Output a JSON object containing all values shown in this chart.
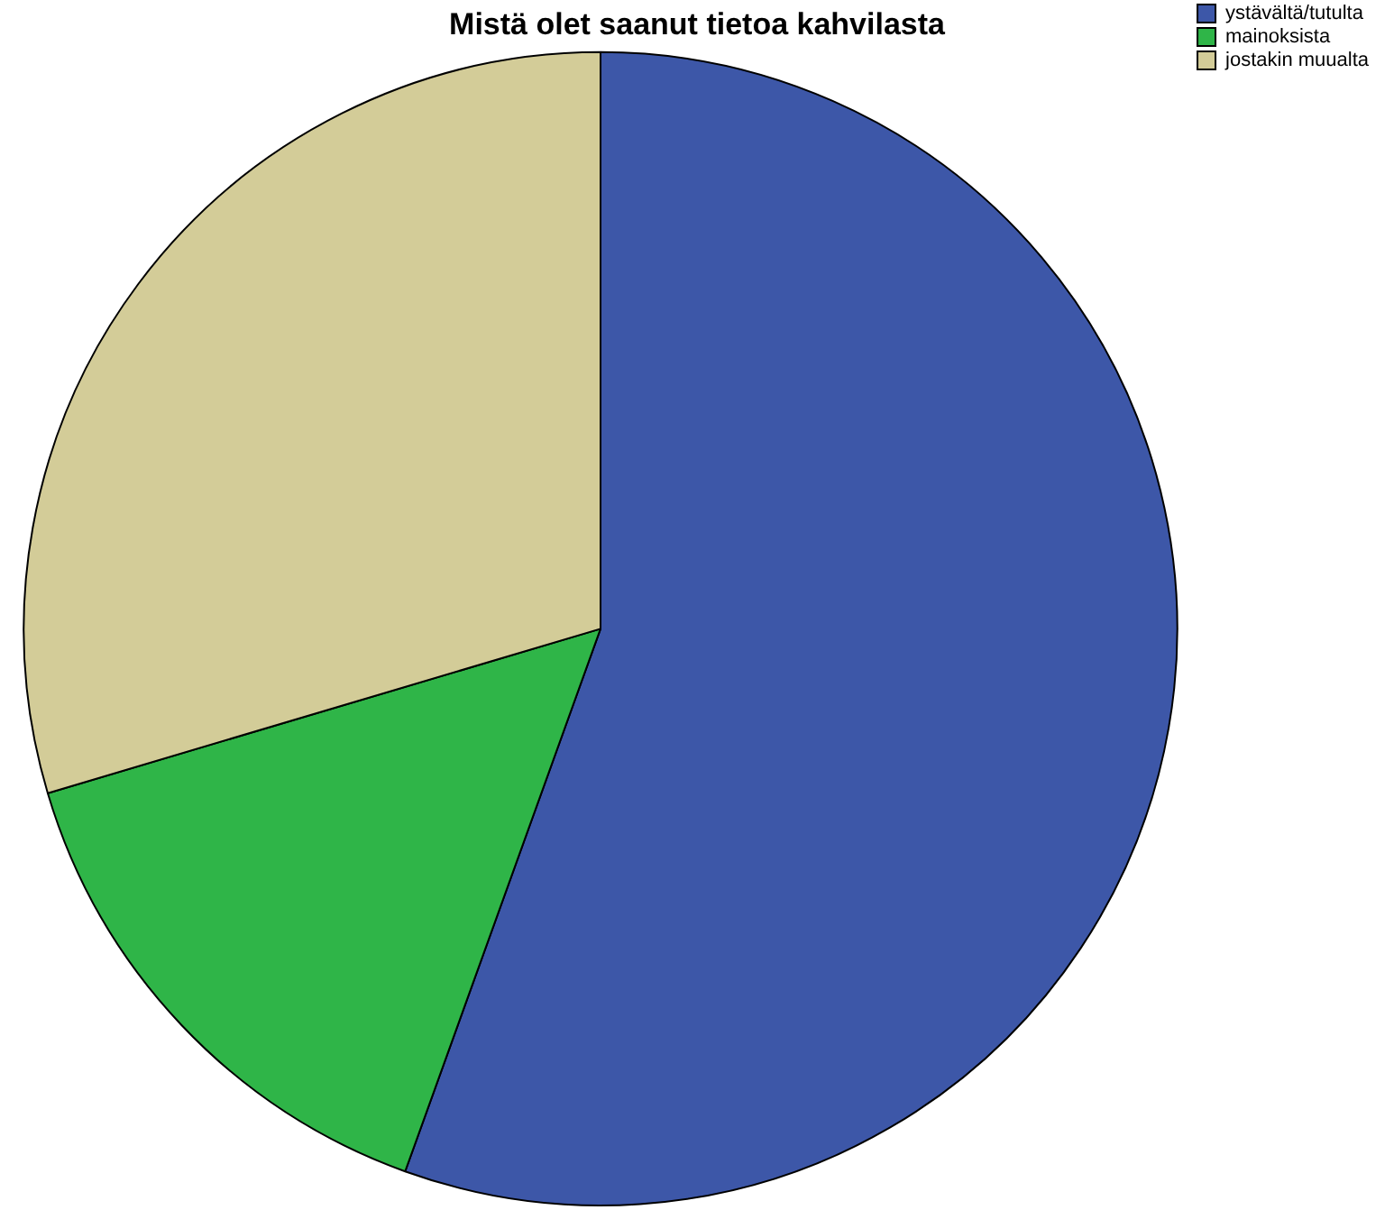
{
  "chart_data": {
    "type": "pie",
    "title": "Mistä olet saanut tietoa kahvilasta",
    "categories": [
      "ystävältä/tutulta",
      "mainoksista",
      "jostakin muualta"
    ],
    "values": [
      55.5,
      14.9,
      29.6
    ],
    "colors": [
      "#3d57a8",
      "#2fb548",
      "#d3cc98"
    ],
    "legend": "top right"
  }
}
